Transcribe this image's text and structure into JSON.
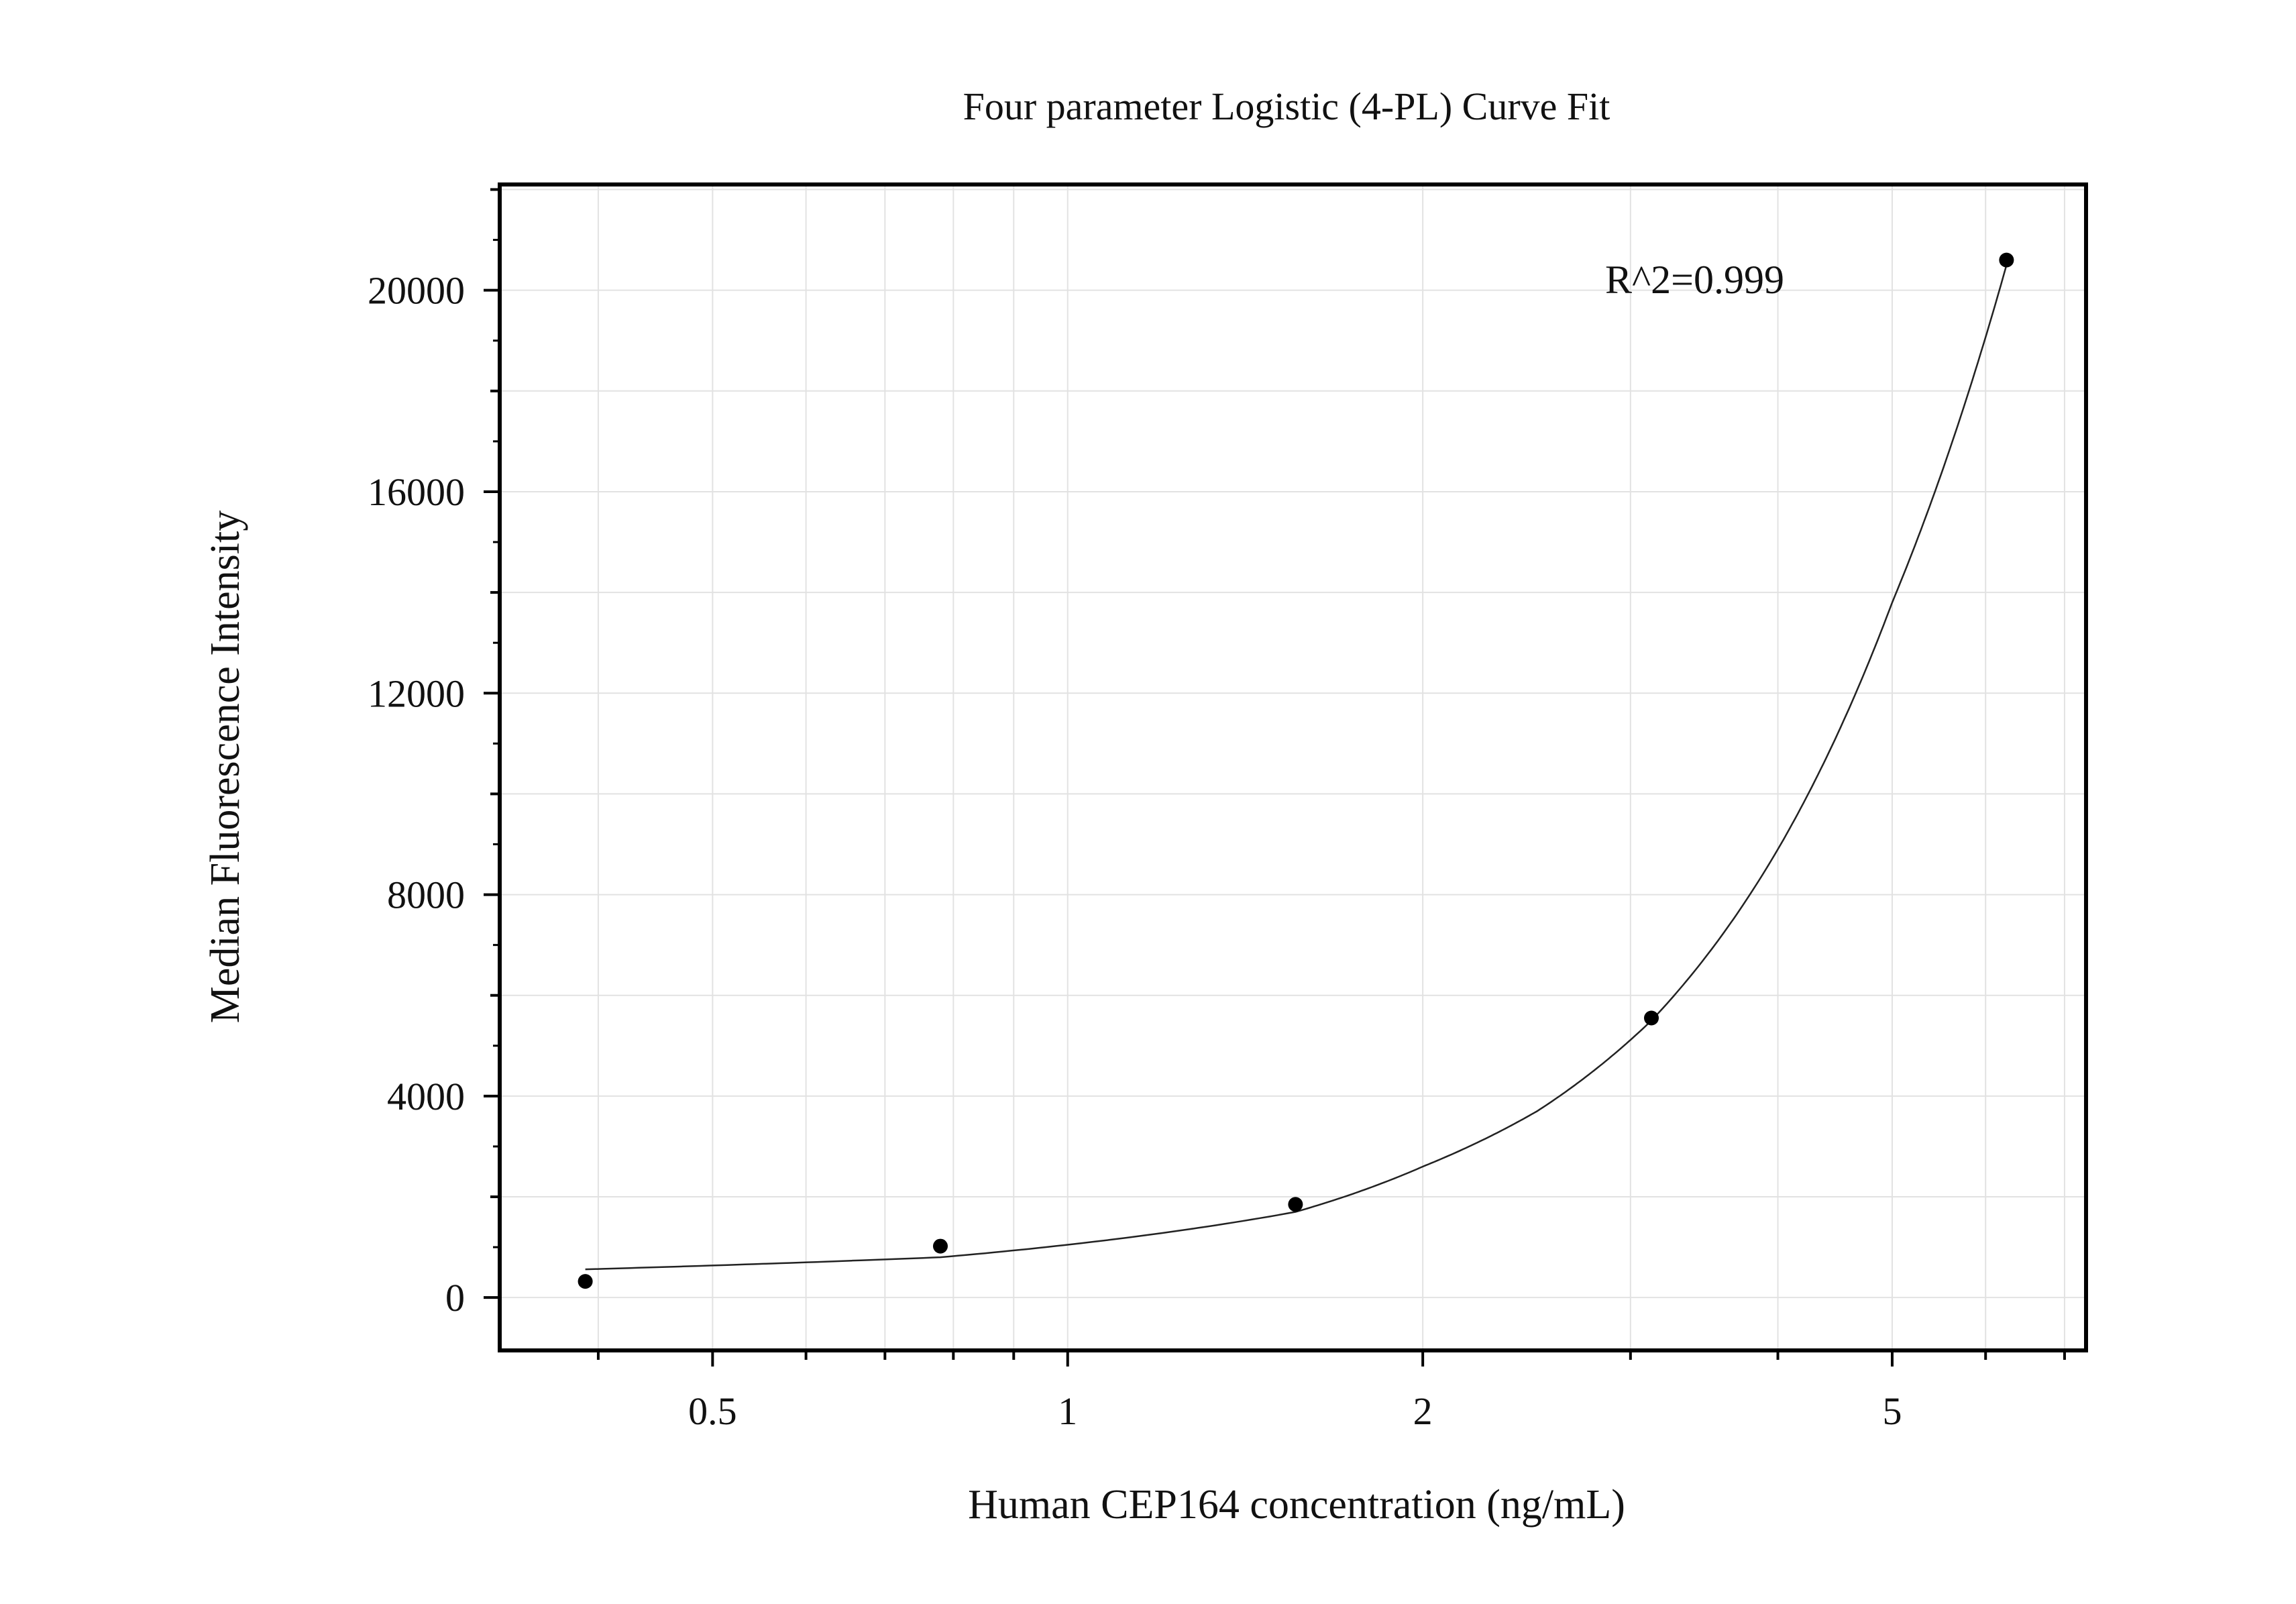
{
  "chart_data": {
    "type": "scatter",
    "title": "Four parameter Logistic (4-PL) Curve Fit",
    "xlabel": "Human CEP164 concentration (ng/mL)",
    "ylabel": "Median Fluorescence Intensity",
    "x_scale": "log",
    "xlim": [
      0.33,
      7.3
    ],
    "ylim": [
      -1050,
      22100
    ],
    "x_ticks": [
      {
        "value": 0.5,
        "label": "0.5"
      },
      {
        "value": 1,
        "label": "1"
      },
      {
        "value": 2,
        "label": "2"
      },
      {
        "value": 5,
        "label": "5"
      }
    ],
    "y_ticks": [
      {
        "value": 0,
        "label": "0"
      },
      {
        "value": 4000,
        "label": "4000"
      },
      {
        "value": 8000,
        "label": "8000"
      },
      {
        "value": 12000,
        "label": "12000"
      },
      {
        "value": 16000,
        "label": "16000"
      },
      {
        "value": 20000,
        "label": "20000"
      }
    ],
    "grid": true,
    "annotation": "R^2=0.999",
    "series": [
      {
        "mode": "markers",
        "x": [
          0.39,
          0.78,
          1.56,
          3.125,
          6.25
        ],
        "y": [
          320,
          1020,
          1850,
          5550,
          20600
        ]
      },
      {
        "mode": "line",
        "x": [
          0.39,
          0.78,
          1.56,
          2.0,
          2.5,
          3.125,
          4.0,
          5.0,
          6.25
        ],
        "y": [
          560,
          800,
          1700,
          2600,
          3700,
          5500,
          8900,
          13800,
          20500
        ]
      }
    ]
  }
}
